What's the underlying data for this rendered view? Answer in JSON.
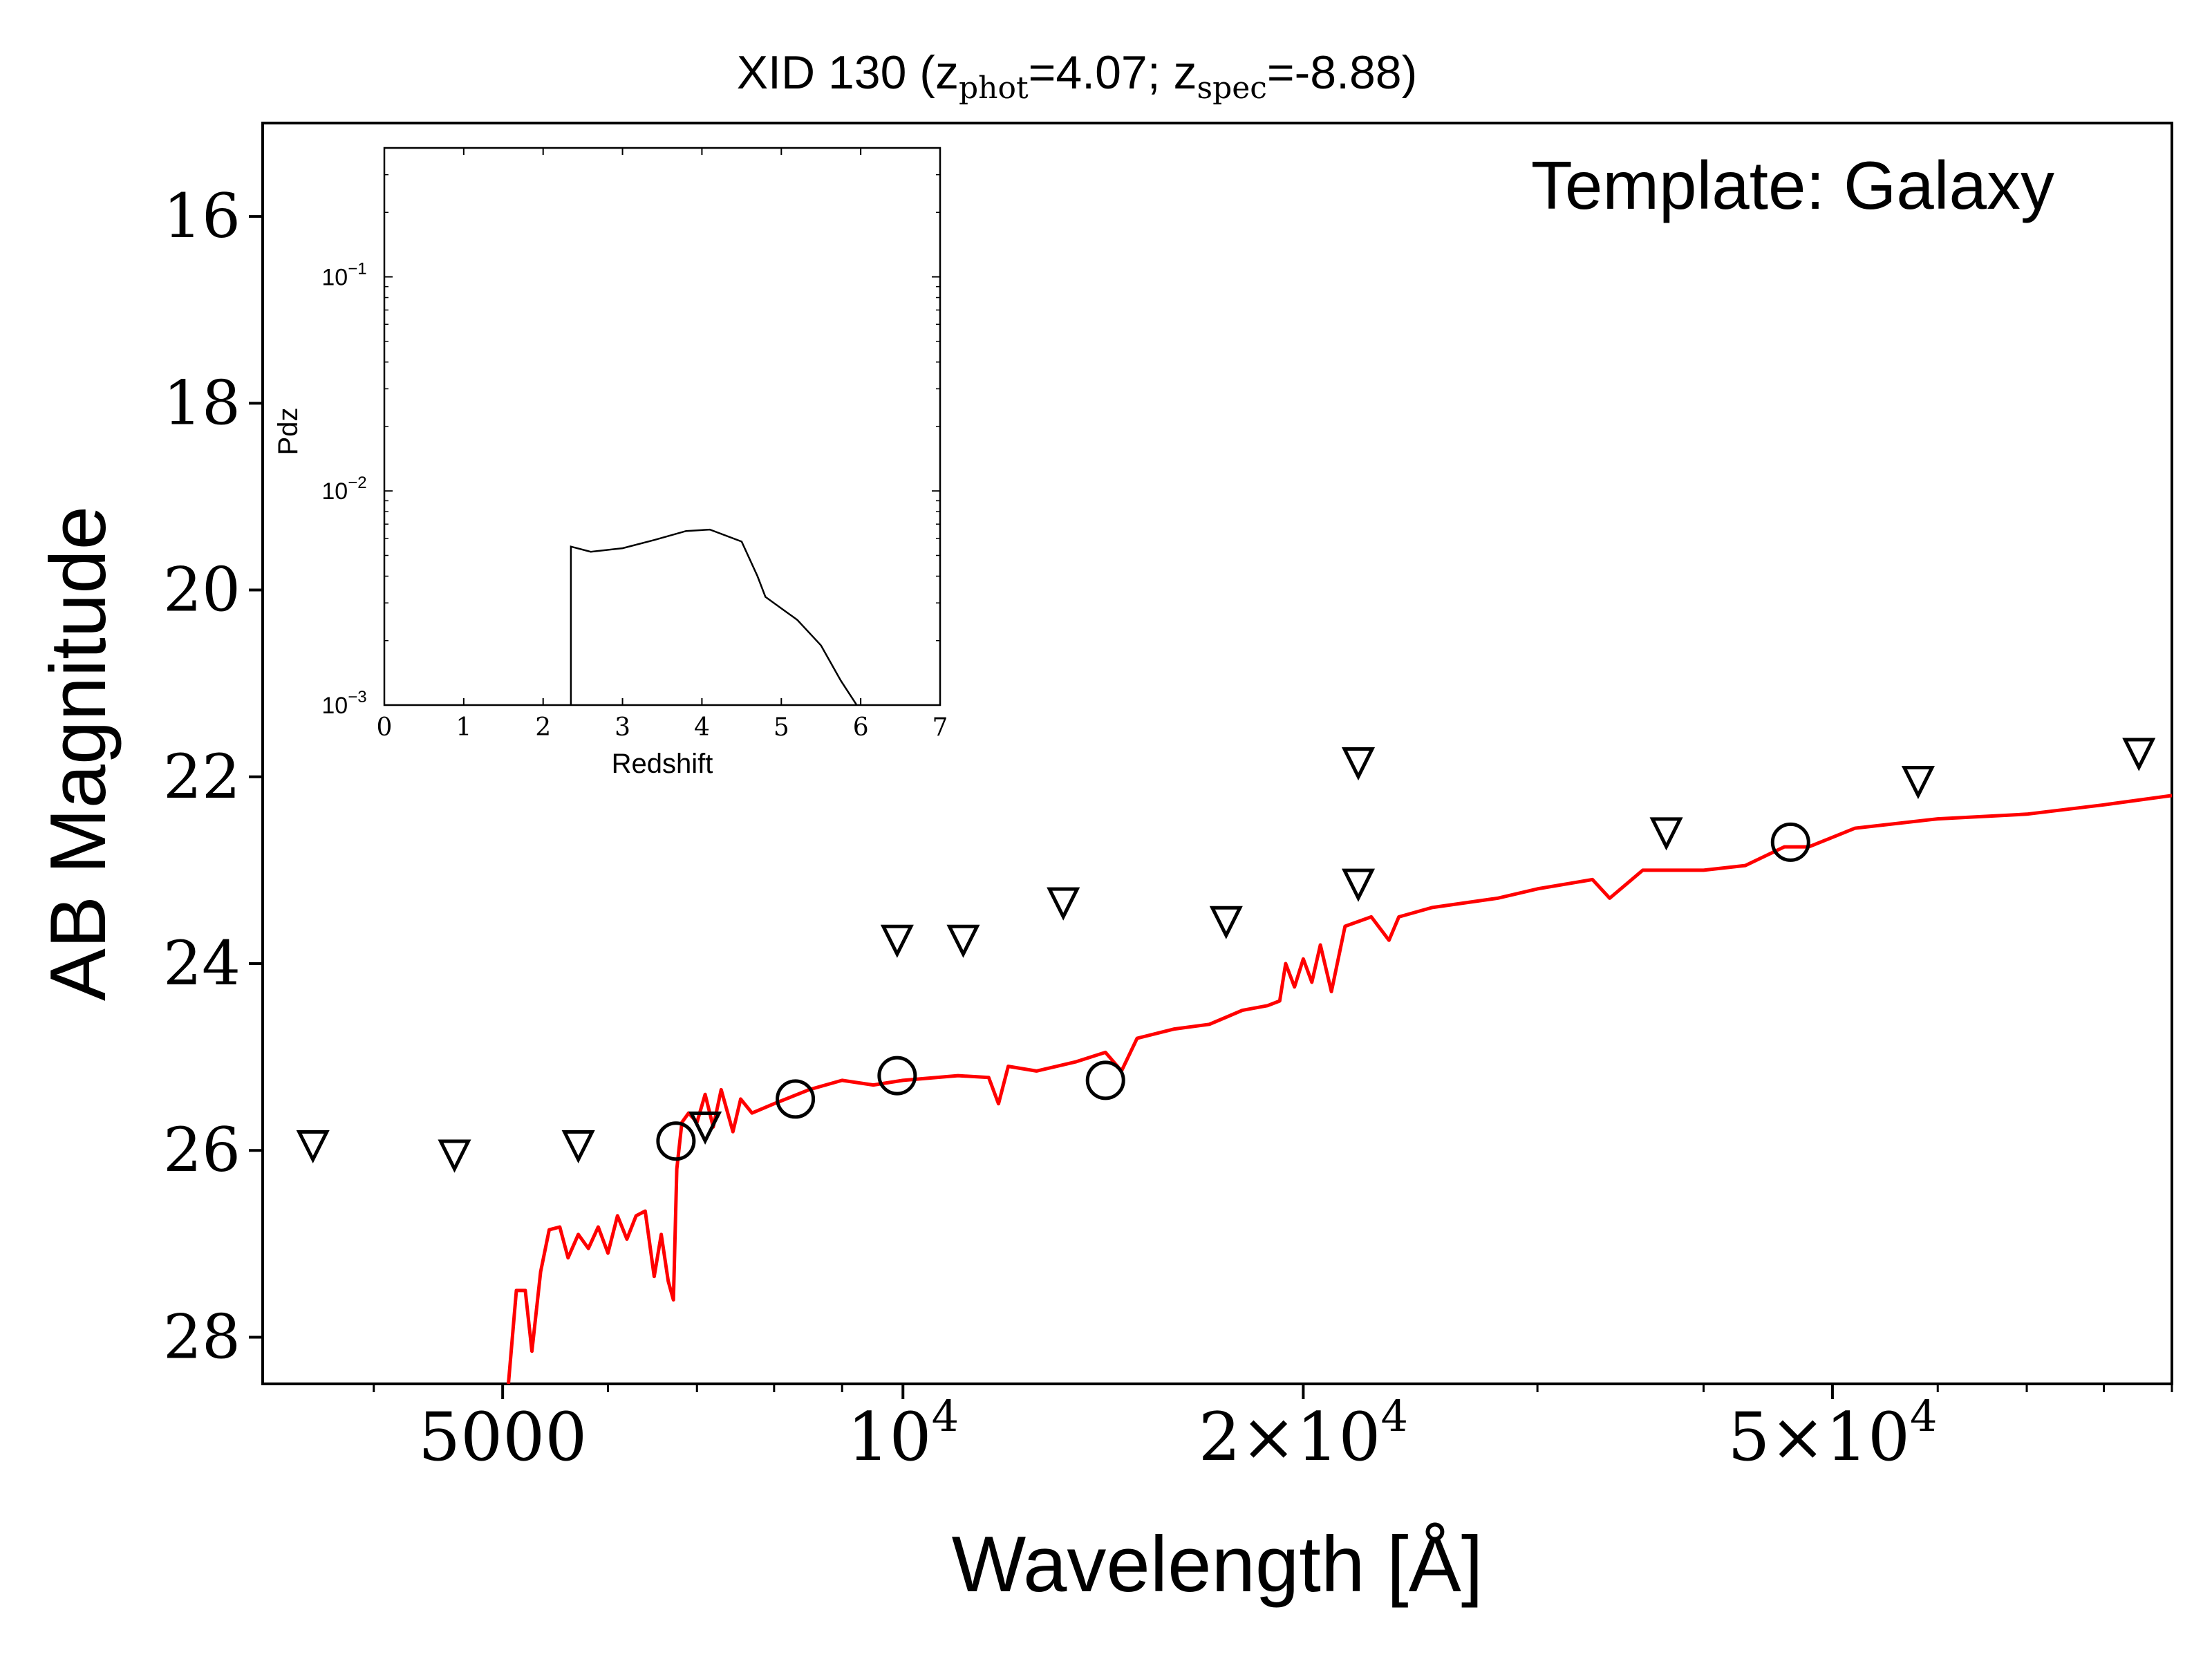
{
  "chart_data": {
    "type": "line",
    "title": {
      "prefix": "XID 130 (z",
      "phot_sub": "phot",
      "phot_val": "=4.07; z",
      "spec_sub": "spec",
      "spec_val": "=-8.88)"
    },
    "annotation": "Template: Galaxy",
    "xlabel": "Wavelength [Å]",
    "ylabel": "AB Magnitude",
    "xscale": "log",
    "xlim": [
      3300,
      90000
    ],
    "ylim": [
      28.5,
      15
    ],
    "x_ticks": [
      {
        "value": 5000,
        "base": "5000",
        "exp": ""
      },
      {
        "value": 10000,
        "base": "10",
        "exp": "4"
      },
      {
        "value": 20000,
        "base": "2×10",
        "exp": "4"
      },
      {
        "value": 50000,
        "base": "5×10",
        "exp": "4"
      }
    ],
    "y_ticks": [
      "16",
      "18",
      "20",
      "22",
      "24",
      "26",
      "28"
    ],
    "series": [
      {
        "color": "#ff0000",
        "points": [
          [
            5050,
            28.5
          ],
          [
            5120,
            27.5
          ],
          [
            5200,
            27.5
          ],
          [
            5260,
            28.15
          ],
          [
            5340,
            27.3
          ],
          [
            5420,
            26.85
          ],
          [
            5520,
            26.82
          ],
          [
            5600,
            27.15
          ],
          [
            5700,
            26.9
          ],
          [
            5800,
            27.05
          ],
          [
            5900,
            26.82
          ],
          [
            6000,
            27.1
          ],
          [
            6100,
            26.7
          ],
          [
            6200,
            26.95
          ],
          [
            6300,
            26.7
          ],
          [
            6400,
            26.65
          ],
          [
            6500,
            27.35
          ],
          [
            6580,
            26.9
          ],
          [
            6660,
            27.4
          ],
          [
            6720,
            27.6
          ],
          [
            6760,
            26.2
          ],
          [
            6820,
            25.7
          ],
          [
            6900,
            25.6
          ],
          [
            7000,
            25.7
          ],
          [
            7100,
            25.4
          ],
          [
            7200,
            25.75
          ],
          [
            7300,
            25.35
          ],
          [
            7450,
            25.8
          ],
          [
            7550,
            25.45
          ],
          [
            7700,
            25.6
          ],
          [
            8000,
            25.5
          ],
          [
            8500,
            25.35
          ],
          [
            9000,
            25.25
          ],
          [
            9500,
            25.3
          ],
          [
            10000,
            25.25
          ],
          [
            11000,
            25.2
          ],
          [
            11600,
            25.22
          ],
          [
            11800,
            25.5
          ],
          [
            12000,
            25.1
          ],
          [
            12600,
            25.15
          ],
          [
            13500,
            25.05
          ],
          [
            14200,
            24.95
          ],
          [
            14600,
            25.15
          ],
          [
            15000,
            24.8
          ],
          [
            16000,
            24.7
          ],
          [
            17000,
            24.65
          ],
          [
            18000,
            24.5
          ],
          [
            18800,
            24.45
          ],
          [
            19200,
            24.4
          ],
          [
            19400,
            24.0
          ],
          [
            19700,
            24.25
          ],
          [
            20000,
            23.95
          ],
          [
            20300,
            24.2
          ],
          [
            20600,
            23.8
          ],
          [
            21000,
            24.3
          ],
          [
            21500,
            23.6
          ],
          [
            22500,
            23.5
          ],
          [
            23200,
            23.75
          ],
          [
            23600,
            23.5
          ],
          [
            25000,
            23.4
          ],
          [
            28000,
            23.3
          ],
          [
            30000,
            23.2
          ],
          [
            33000,
            23.1
          ],
          [
            34000,
            23.3
          ],
          [
            36000,
            23.0
          ],
          [
            40000,
            23.0
          ],
          [
            43000,
            22.95
          ],
          [
            46000,
            22.75
          ],
          [
            48000,
            22.75
          ],
          [
            52000,
            22.55
          ],
          [
            60000,
            22.45
          ],
          [
            70000,
            22.4
          ],
          [
            80000,
            22.3
          ],
          [
            90000,
            22.2
          ]
        ]
      }
    ],
    "detections": [
      [
        6750,
        25.9
      ],
      [
        8300,
        25.45
      ],
      [
        9900,
        25.2
      ],
      [
        14200,
        25.25
      ],
      [
        46500,
        22.7
      ]
    ],
    "upper_limits": [
      [
        3600,
        25.95
      ],
      [
        4600,
        26.05
      ],
      [
        5700,
        25.95
      ],
      [
        7100,
        25.75
      ],
      [
        9900,
        23.75
      ],
      [
        11100,
        23.75
      ],
      [
        13200,
        23.35
      ],
      [
        17500,
        23.55
      ],
      [
        22000,
        21.85
      ],
      [
        22000,
        23.15
      ],
      [
        37500,
        22.6
      ],
      [
        58000,
        22.05
      ],
      [
        85000,
        21.75
      ]
    ],
    "inset": {
      "type": "line",
      "xlabel": "Redshift",
      "ylabel": "Pdz",
      "xlim": [
        0,
        7
      ],
      "ylim": [
        0.001,
        0.4
      ],
      "yscale": "log",
      "x_ticks": [
        "0",
        "1",
        "2",
        "3",
        "4",
        "5",
        "6",
        "7"
      ],
      "y_ticks": [
        {
          "value": 0.1,
          "base": "10",
          "exp": "−1"
        },
        {
          "value": 0.01,
          "base": "10",
          "exp": "−2"
        },
        {
          "value": 0.001,
          "base": "10",
          "exp": "−3"
        }
      ],
      "x": [
        2.35,
        2.35,
        2.6,
        3.0,
        3.4,
        3.8,
        4.1,
        4.5,
        4.7,
        4.8,
        5.2,
        5.5,
        5.75,
        5.95
      ],
      "y": [
        0.001,
        0.0055,
        0.0052,
        0.0054,
        0.0059,
        0.0065,
        0.0066,
        0.0058,
        0.004,
        0.0032,
        0.0025,
        0.0019,
        0.0013,
        0.001
      ]
    }
  }
}
